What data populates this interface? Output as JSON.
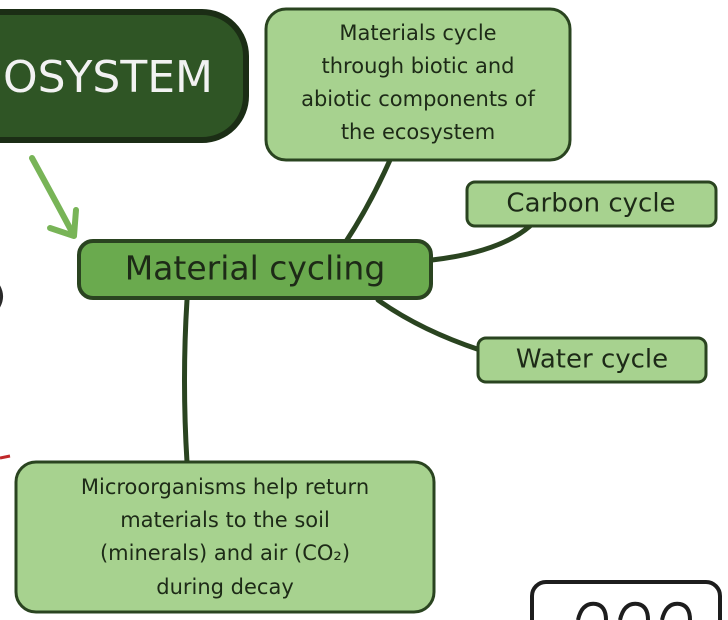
{
  "header": {
    "title": "OSYSTEM"
  },
  "nodes": [
    {
      "label": [
        "Materials cycle",
        "through biotic and",
        "abiotic components of",
        "the ecosystem"
      ]
    },
    {
      "label": [
        "Carbon cycle"
      ]
    },
    {
      "label": [
        "Material cycling"
      ]
    },
    {
      "label": [
        "Water cycle"
      ]
    },
    {
      "label": [
        "Microorganisms help return",
        "materials to the soil",
        "(minerals) and air (CO₂)",
        "during decay"
      ]
    }
  ]
}
